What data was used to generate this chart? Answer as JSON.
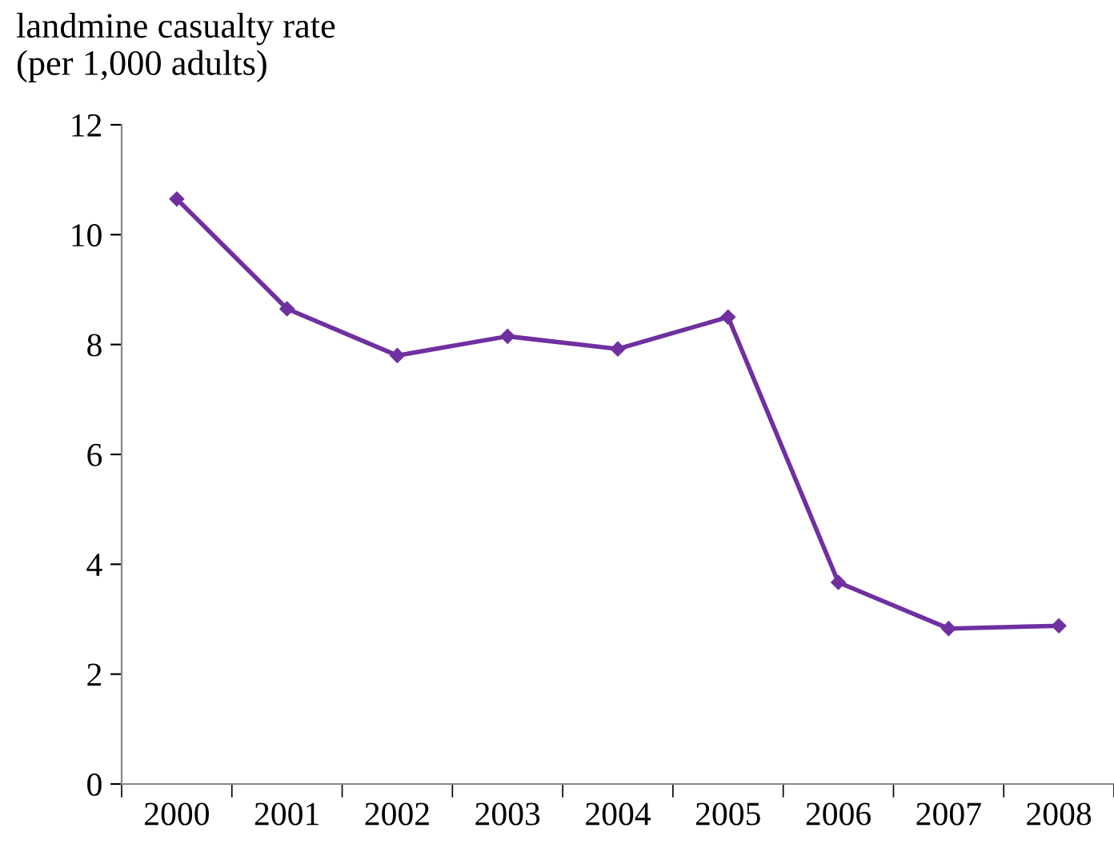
{
  "chart_data": {
    "type": "line",
    "ylabel": "landmine casualty rate\n(per 1,000 adults)",
    "categories": [
      "2000",
      "2001",
      "2002",
      "2003",
      "2004",
      "2005",
      "2006",
      "2007",
      "2008"
    ],
    "series": [
      {
        "color": "#7030a0",
        "values": [
          10.65,
          8.65,
          7.8,
          8.15,
          7.92,
          8.5,
          3.67,
          2.83,
          2.88
        ]
      }
    ],
    "ylim": [
      0,
      12
    ],
    "yticks": [
      0,
      2,
      4,
      6,
      8,
      10,
      12
    ],
    "grid": false,
    "legend": false,
    "marker": "diamond",
    "line_style": "solid"
  }
}
